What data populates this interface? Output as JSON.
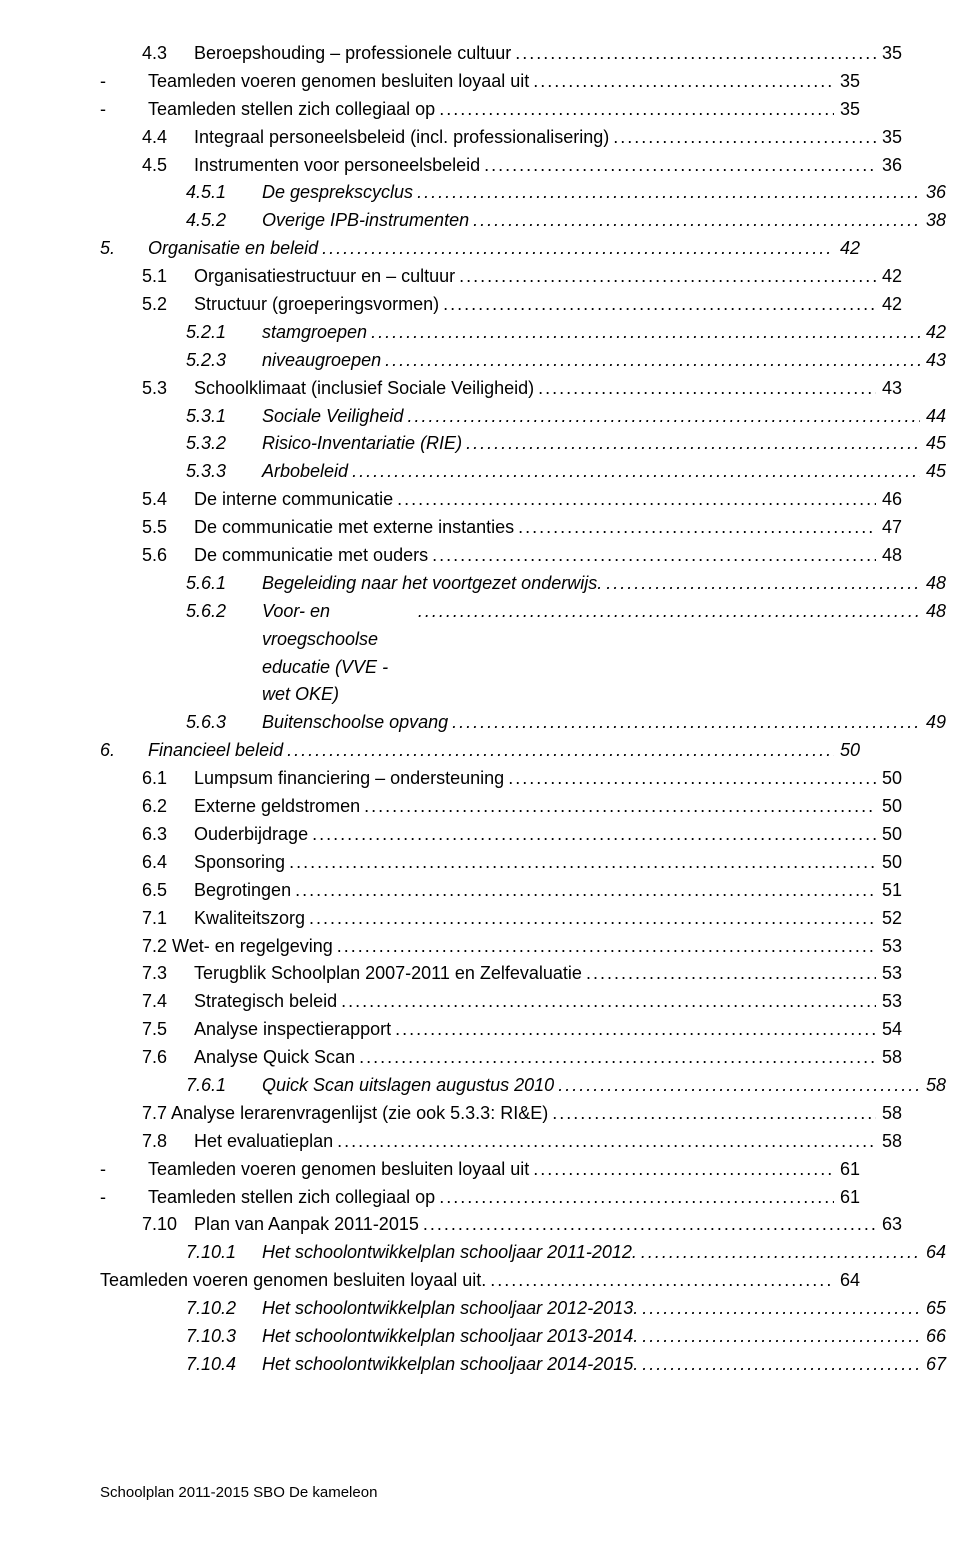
{
  "footer": "Schoolplan 2011-2015 SBO De kameleon",
  "toc": [
    {
      "indent": "indent-1",
      "italic": false,
      "num": "4.3",
      "title": "Beroepshouding – professionele cultuur",
      "page": "35"
    },
    {
      "indent": "indent-0",
      "italic": false,
      "num": "-",
      "title": "Teamleden voeren genomen besluiten loyaal uit",
      "page": "35",
      "numpad": true
    },
    {
      "indent": "indent-0",
      "italic": false,
      "num": "-",
      "title": "Teamleden stellen zich collegiaal op",
      "page": "35",
      "numpad": true
    },
    {
      "indent": "indent-1",
      "italic": false,
      "num": "4.4",
      "title": "Integraal personeelsbeleid (incl. professionalisering)",
      "page": "35"
    },
    {
      "indent": "indent-1",
      "italic": false,
      "num": "4.5",
      "title": "Instrumenten voor personeelsbeleid",
      "page": "36"
    },
    {
      "indent": "indent-sub",
      "italic": true,
      "num": "4.5.1",
      "title": "De gesprekscyclus",
      "page": "36"
    },
    {
      "indent": "indent-sub",
      "italic": true,
      "num": "4.5.2",
      "title": "Overige IPB-instrumenten",
      "page": "38"
    },
    {
      "indent": "indent-0",
      "italic": true,
      "num": "5.",
      "title": "Organisatie en beleid",
      "page": "42"
    },
    {
      "indent": "indent-1",
      "italic": false,
      "num": "5.1",
      "title": "Organisatiestructuur en – cultuur",
      "page": "42"
    },
    {
      "indent": "indent-1",
      "italic": false,
      "num": "5.2",
      "title": "Structuur (groeperingsvormen)",
      "page": "42"
    },
    {
      "indent": "indent-sub",
      "italic": true,
      "num": "5.2.1",
      "title": "stamgroepen",
      "page": "42"
    },
    {
      "indent": "indent-sub",
      "italic": true,
      "num": "5.2.3",
      "title": "niveaugroepen",
      "page": "43"
    },
    {
      "indent": "indent-1",
      "italic": false,
      "num": "5.3",
      "title": "Schoolklimaat (inclusief Sociale Veiligheid)",
      "page": "43"
    },
    {
      "indent": "indent-sub",
      "italic": true,
      "num": "5.3.1",
      "title": "Sociale Veiligheid",
      "page": "44"
    },
    {
      "indent": "indent-sub",
      "italic": true,
      "num": "5.3.2",
      "title": "Risico-Inventariatie (RIE)",
      "page": "45"
    },
    {
      "indent": "indent-sub",
      "italic": true,
      "num": "5.3.3",
      "title": "Arbobeleid",
      "page": "45"
    },
    {
      "indent": "indent-1",
      "italic": false,
      "num": "5.4",
      "title": "De interne communicatie",
      "page": "46"
    },
    {
      "indent": "indent-1",
      "italic": false,
      "num": "5.5",
      "title": "De communicatie met externe instanties",
      "page": "47"
    },
    {
      "indent": "indent-1",
      "italic": false,
      "num": "5.6",
      "title": "De communicatie met ouders",
      "page": "48"
    },
    {
      "indent": "indent-sub",
      "italic": true,
      "num": "5.6.1",
      "title": "Begeleiding naar het voortgezet onderwijs.",
      "page": "48"
    },
    {
      "indent": "indent-sub",
      "italic": true,
      "num": "5.6.2",
      "title": "Voor- en vroegschoolse educatie (VVE - wet OKE)",
      "page": "48",
      "wrap": true
    },
    {
      "indent": "indent-sub",
      "italic": true,
      "num": "5.6.3",
      "title": "Buitenschoolse opvang",
      "page": "49"
    },
    {
      "indent": "indent-0",
      "italic": true,
      "num": "6.",
      "title": "Financieel beleid",
      "page": "50"
    },
    {
      "indent": "indent-1",
      "italic": false,
      "num": "6.1",
      "title": "Lumpsum financiering – ondersteuning",
      "page": "50"
    },
    {
      "indent": "indent-1",
      "italic": false,
      "num": "6.2",
      "title": "Externe geldstromen",
      "page": "50"
    },
    {
      "indent": "indent-1",
      "italic": false,
      "num": "6.3",
      "title": "Ouderbijdrage",
      "page": "50"
    },
    {
      "indent": "indent-1",
      "italic": false,
      "num": "6.4",
      "title": "Sponsoring",
      "page": "50"
    },
    {
      "indent": "indent-1",
      "italic": false,
      "num": "6.5",
      "title": "Begrotingen",
      "page": "51"
    },
    {
      "indent": "indent-1",
      "italic": false,
      "num": "7.1",
      "title": "Kwaliteitszorg",
      "page": "52"
    },
    {
      "indent": "indent-1",
      "italic": false,
      "num": "",
      "title": "7.2 Wet- en regelgeving",
      "page": "53",
      "nonum": true
    },
    {
      "indent": "indent-1",
      "italic": false,
      "num": "7.3",
      "title": "Terugblik Schoolplan 2007-2011 en Zelfevaluatie",
      "page": "53"
    },
    {
      "indent": "indent-1",
      "italic": false,
      "num": "7.4",
      "title": "Strategisch beleid",
      "page": "53"
    },
    {
      "indent": "indent-1",
      "italic": false,
      "num": "7.5",
      "title": "Analyse inspectierapport",
      "page": "54"
    },
    {
      "indent": "indent-1",
      "italic": false,
      "num": "7.6",
      "title": "Analyse Quick Scan",
      "page": "58"
    },
    {
      "indent": "indent-sub",
      "italic": true,
      "num": "7.6.1",
      "title": "Quick Scan uitslagen augustus 2010",
      "page": "58"
    },
    {
      "indent": "indent-1",
      "italic": false,
      "num": "",
      "title": "7.7 Analyse lerarenvragenlijst (zie ook 5.3.3: RI&E)",
      "page": "58",
      "nonum": true
    },
    {
      "indent": "indent-1",
      "italic": false,
      "num": "7.8",
      "title": "Het evaluatieplan",
      "page": "58"
    },
    {
      "indent": "indent-0",
      "italic": false,
      "num": "-",
      "title": "Teamleden voeren genomen besluiten loyaal uit",
      "page": "61",
      "numpad": true
    },
    {
      "indent": "indent-0",
      "italic": false,
      "num": "-",
      "title": "Teamleden stellen zich collegiaal op",
      "page": "61",
      "numpad": true
    },
    {
      "indent": "indent-1",
      "italic": false,
      "num": "7.10",
      "title": "Plan van Aanpak 2011-2015",
      "page": "63"
    },
    {
      "indent": "indent-sub",
      "italic": true,
      "num": "7.10.1",
      "title": "Het schoolontwikkelplan schooljaar 2011-2012.",
      "page": "64"
    },
    {
      "indent": "indent-none",
      "italic": false,
      "num": "",
      "title": "Teamleden voeren genomen besluiten loyaal uit.",
      "page": "64",
      "nonum": true
    },
    {
      "indent": "indent-sub",
      "italic": true,
      "num": "7.10.2",
      "title": "Het schoolontwikkelplan schooljaar 2012-2013.",
      "page": "65"
    },
    {
      "indent": "indent-sub",
      "italic": true,
      "num": "7.10.3",
      "title": "Het schoolontwikkelplan schooljaar 2013-2014.",
      "page": "66"
    },
    {
      "indent": "indent-sub",
      "italic": true,
      "num": "7.10.4",
      "title": "Het schoolontwikkelplan schooljaar 2014-2015.",
      "page": "67"
    }
  ]
}
